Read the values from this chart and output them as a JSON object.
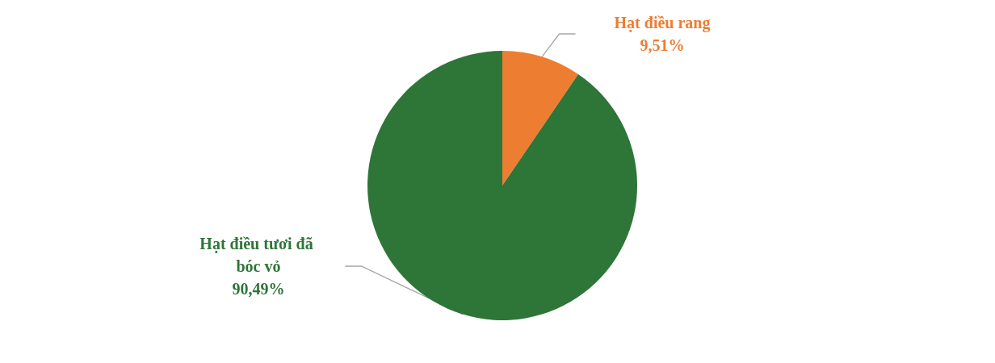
{
  "chart_data": {
    "type": "pie",
    "categories": [
      "Hạt điều rang",
      "Hạt điều tươi đã bóc vỏ"
    ],
    "values": [
      9.51,
      90.49
    ],
    "colors": [
      "#ed7d31",
      "#2e7538"
    ],
    "value_labels": [
      "9,51%",
      "90,49%"
    ],
    "legend": false
  }
}
